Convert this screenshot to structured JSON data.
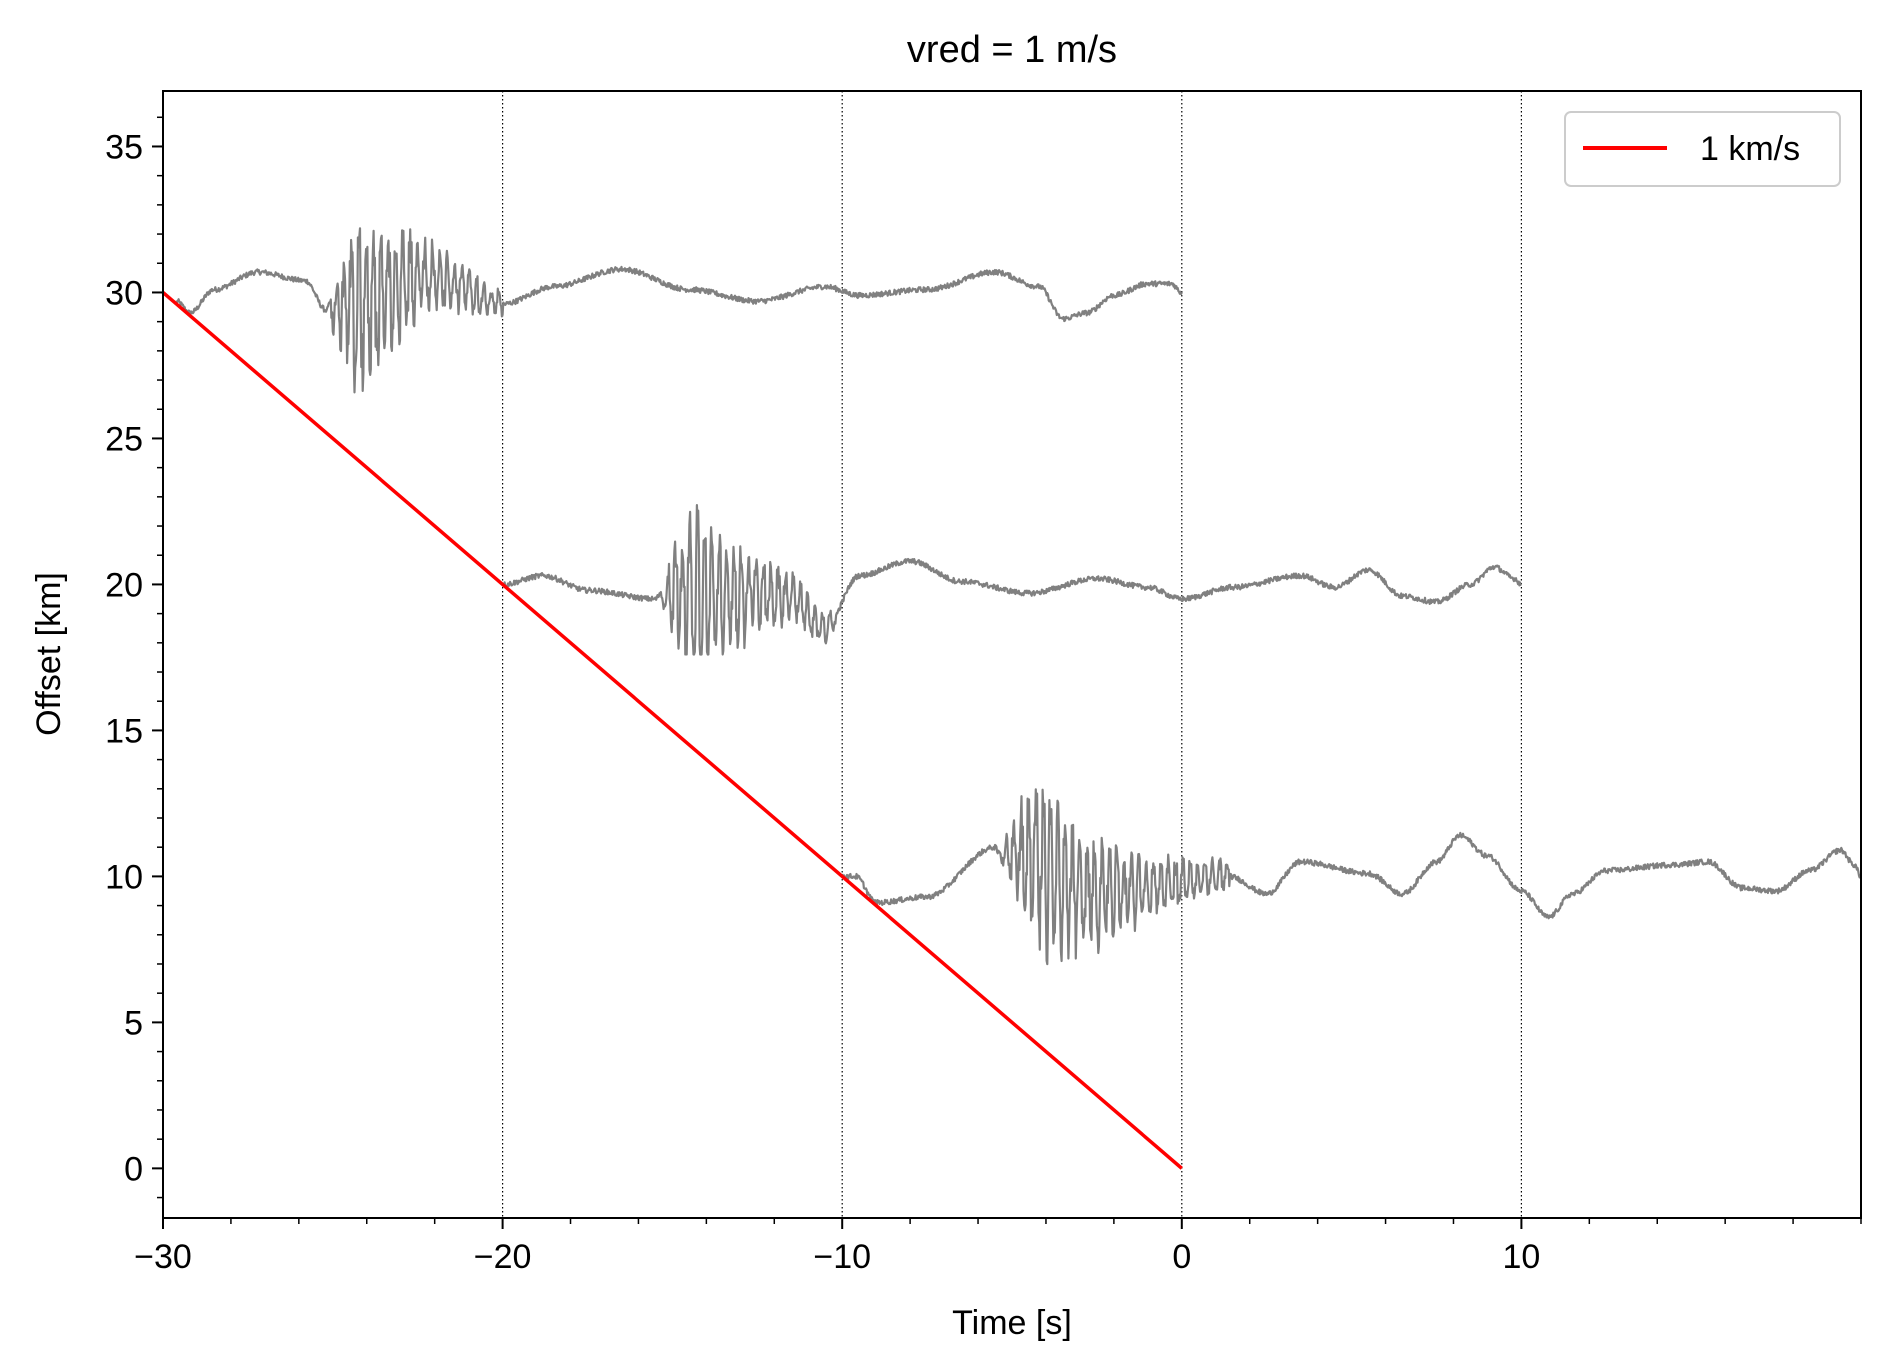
{
  "chart_data": {
    "type": "line",
    "title": "vred = 1 m/s",
    "xlabel": "Time [s]",
    "ylabel": "Offset [km]",
    "xlim": [
      -30,
      20
    ],
    "ylim": [
      -1.7,
      36.9
    ],
    "grid": "vertical dotted lines at major x ticks",
    "legend_position": "top-right",
    "x_ticks": [
      -30,
      -20,
      -10,
      0,
      10
    ],
    "x_tick_labels": [
      "−30",
      "−20",
      "−10",
      "0",
      "10"
    ],
    "y_ticks": [
      0,
      5,
      10,
      15,
      20,
      25,
      30,
      35
    ],
    "y_tick_labels": [
      "0",
      "5",
      "10",
      "15",
      "20",
      "25",
      "30",
      "35"
    ],
    "colors": {
      "trace": "#808080",
      "reference": "#ff0000",
      "grid": "#000000"
    },
    "reference_line": {
      "name": "1 km/s",
      "x": [
        -30,
        0
      ],
      "y": [
        30,
        0
      ]
    },
    "series": [
      {
        "offset": 30,
        "x_start": -29.6,
        "x_end": 0,
        "onset": -25.2,
        "coda_end": -20,
        "peak_high": 33.7,
        "peak_low": 25.6,
        "keypoints": [
          [
            -29.6,
            29.7
          ],
          [
            -29.2,
            29.3
          ],
          [
            -28.5,
            30.1
          ],
          [
            -27.2,
            30.7
          ],
          [
            -25.8,
            30.4
          ],
          [
            -25.2,
            29.4
          ],
          [
            -22,
            30.5
          ],
          [
            -20,
            29.6
          ],
          [
            -18.5,
            30.2
          ],
          [
            -16.5,
            30.8
          ],
          [
            -14.5,
            30.1
          ],
          [
            -12.5,
            29.7
          ],
          [
            -10.5,
            30.2
          ],
          [
            -9.5,
            29.9
          ],
          [
            -7.5,
            30.1
          ],
          [
            -5.5,
            30.7
          ],
          [
            -4.2,
            30.2
          ],
          [
            -3.5,
            29.1
          ],
          [
            -2.8,
            29.3
          ],
          [
            -2,
            29.9
          ],
          [
            -1,
            30.3
          ],
          [
            -0.3,
            30.3
          ],
          [
            0,
            30.0
          ]
        ]
      },
      {
        "offset": 20,
        "x_start": -20,
        "x_end": 10,
        "onset": -15.4,
        "coda_end": -10.2,
        "peak_high": 24.4,
        "peak_low": 17.6,
        "keypoints": [
          [
            -20,
            20
          ],
          [
            -18.8,
            20.3
          ],
          [
            -17.5,
            19.8
          ],
          [
            -15.5,
            19.5
          ],
          [
            -15.4,
            19.6
          ],
          [
            -11.5,
            19.6
          ],
          [
            -10.5,
            18.5
          ],
          [
            -9.5,
            20.3
          ],
          [
            -8,
            20.8
          ],
          [
            -6.5,
            20.1
          ],
          [
            -4.5,
            19.7
          ],
          [
            -2.5,
            20.2
          ],
          [
            -1,
            19.9
          ],
          [
            0,
            19.5
          ],
          [
            1.5,
            19.9
          ],
          [
            3.5,
            20.3
          ],
          [
            4.5,
            19.9
          ],
          [
            5.5,
            20.5
          ],
          [
            6.5,
            19.6
          ],
          [
            7.5,
            19.4
          ],
          [
            8.5,
            20
          ],
          [
            9.2,
            20.6
          ],
          [
            9.8,
            20.2
          ],
          [
            10,
            20.0
          ]
        ]
      },
      {
        "offset": 10,
        "x_start": -10,
        "x_end": 20,
        "onset": -5.4,
        "coda_end": 1.4,
        "peak_high": 13.7,
        "peak_low": 5.5,
        "keypoints": [
          [
            -10,
            10
          ],
          [
            -9.6,
            10
          ],
          [
            -9,
            9.1
          ],
          [
            -7.5,
            9.3
          ],
          [
            -5.5,
            11
          ],
          [
            -5.4,
            10.8
          ],
          [
            -2.5,
            9.4
          ],
          [
            1.4,
            10.0
          ],
          [
            2.5,
            9.4
          ],
          [
            3.5,
            10.5
          ],
          [
            5.5,
            10.1
          ],
          [
            6.5,
            9.4
          ],
          [
            7.5,
            10.5
          ],
          [
            8.2,
            11.4
          ],
          [
            9,
            10.7
          ],
          [
            10,
            9.5
          ],
          [
            10.8,
            8.6
          ],
          [
            11.5,
            9.4
          ],
          [
            12.5,
            10.2
          ],
          [
            14.5,
            10.4
          ],
          [
            15.5,
            10.5
          ],
          [
            16.5,
            9.6
          ],
          [
            17.5,
            9.5
          ],
          [
            18.5,
            10.2
          ],
          [
            19.4,
            10.9
          ],
          [
            19.8,
            10.4
          ],
          [
            20,
            10.0
          ]
        ]
      }
    ],
    "legend": [
      {
        "label": "1 km/s",
        "color": "#ff0000"
      }
    ]
  }
}
